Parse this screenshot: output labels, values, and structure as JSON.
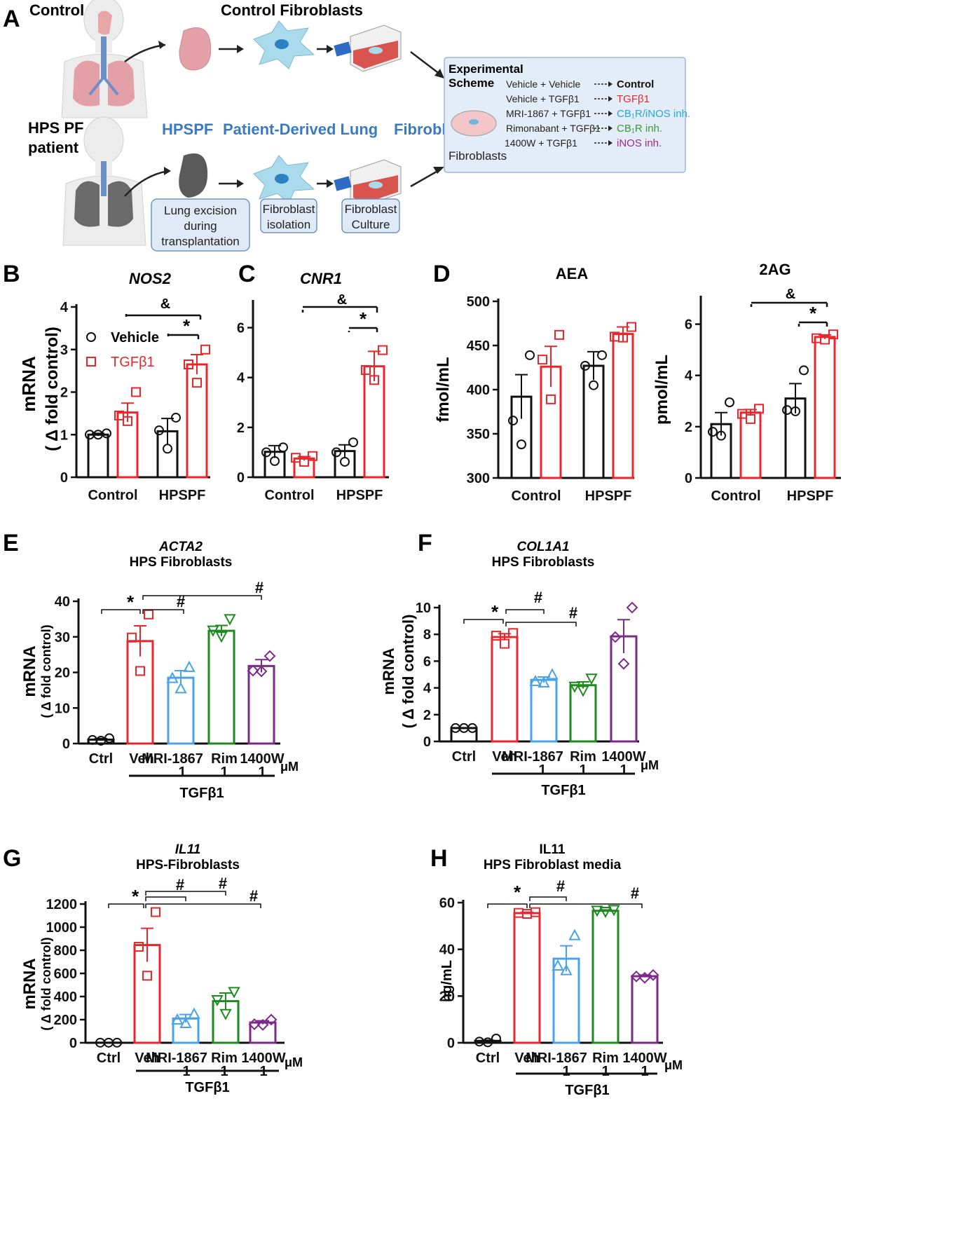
{
  "panelA": {
    "letter": "A",
    "control_label": "Control",
    "control_fibroblasts_title": "Control Fibroblasts",
    "hps_patient_label_1": "HPS PF",
    "hps_patient_label_2": "patient",
    "hpspf_title_1": "HPSPF",
    "hpspf_title_2": "Patient-Derived Lung",
    "hpspf_title_3": "Fibroblasts",
    "step1_lines": [
      "Lung excision",
      "during",
      "transplantation"
    ],
    "step2_lines": [
      "Fibroblast",
      "isolation"
    ],
    "step3_lines": [
      "Fibroblast",
      "Culture"
    ],
    "scheme_title_1": "Experimental",
    "scheme_title_2": "Scheme",
    "scheme_dish_label": "Fibroblasts",
    "scheme_rows": [
      {
        "treatment": "Vehicle + Vehicle",
        "group": "Control",
        "color": "#111111"
      },
      {
        "treatment": "Vehicle + TGFβ1",
        "group": "TGFβ1",
        "color": "#e8262b"
      },
      {
        "treatment": "MRI-1867 + TGFβ1",
        "group": "CB₁R/iNOS inh.",
        "color": "#27a7d8"
      },
      {
        "treatment": "Rimonabant + TGFβ1",
        "group": "CB₁R inh.",
        "color": "#3a9a35"
      },
      {
        "treatment": "1400W + TGFβ1",
        "group": "iNOS inh.",
        "color": "#a2278f"
      }
    ]
  },
  "colors": {
    "vehicle": "#111111",
    "tgf": "#e8262b",
    "mri": "#4aa3e8",
    "rim": "#1f8a1f",
    "w1400": "#7b2a8a"
  },
  "panels": {
    "B": {
      "letter": "B",
      "title": "NOS2",
      "ylabel_1": "mRNA",
      "ylabel_2": "( Δ fold control)",
      "legend_vehicle": "Vehicle",
      "legend_tgf": "TGFβ1",
      "sig_amp": "&",
      "sig_star": "*"
    },
    "C": {
      "letter": "C",
      "title": "CNR1",
      "sig_amp": "&",
      "sig_star": "*"
    },
    "D": {
      "letter": "D",
      "title_aea": "AEA",
      "title_2ag": "2AG",
      "ylabel_aea": "fmol/mL",
      "ylabel_2ag": "pmol/mL",
      "sig_amp": "&",
      "sig_star": "*"
    },
    "E": {
      "letter": "E",
      "title_1": "ACTA2",
      "title_2": "HPS Fibroblasts",
      "ylabel_1": "mRNA",
      "ylabel_2": "( Δ fold control)",
      "sig_star": "*",
      "sig_hash": "#",
      "treatment": "TGFβ1",
      "unit": "μM"
    },
    "F": {
      "letter": "F",
      "title_1": "COL1A1",
      "title_2": "HPS Fibroblasts",
      "ylabel_1": "mRNA",
      "ylabel_2": "( Δ fold control)",
      "sig_star": "*",
      "sig_hash": "#",
      "treatment": "TGFβ1",
      "unit": "μM"
    },
    "G": {
      "letter": "G",
      "title_1": "IL11",
      "title_2": "HPS-Fibroblasts",
      "ylabel_1": "mRNA",
      "ylabel_2": "( Δ fold control)",
      "sig_star": "*",
      "sig_hash": "#",
      "treatment": "TGFβ1",
      "unit": "μM"
    },
    "H": {
      "letter": "H",
      "title_1": "IL11",
      "title_2": "HPS Fibroblast media",
      "ylabel": "ng/mL",
      "sig_star": "*",
      "sig_hash": "#",
      "treatment": "TGFβ1",
      "unit": "μM"
    }
  },
  "chart_data": [
    {
      "id": "B",
      "type": "bar",
      "title": "NOS2",
      "ylabel": "mRNA ( Δ fold control)",
      "ylim": [
        0,
        4
      ],
      "yticks": [
        0,
        1,
        2,
        3,
        4
      ],
      "categories": [
        "Control",
        "HPSPF"
      ],
      "series": [
        {
          "name": "Vehicle",
          "values": [
            1.0,
            1.08
          ],
          "sem": [
            0.03,
            0.3
          ],
          "points": [
            [
              1.0,
              1.0,
              1.03
            ],
            [
              0.67,
              1.1,
              1.4
            ]
          ]
        },
        {
          "name": "TGFβ1",
          "values": [
            1.52,
            2.65
          ],
          "sem": [
            0.22,
            0.23
          ],
          "points": [
            [
              1.32,
              1.45,
              2.0
            ],
            [
              2.22,
              2.65,
              3.0
            ]
          ]
        }
      ]
    },
    {
      "id": "C",
      "type": "bar",
      "title": "CNR1",
      "ylim": [
        0,
        7
      ],
      "yticks": [
        0,
        2,
        4,
        6
      ],
      "categories": [
        "Control",
        "HPSPF"
      ],
      "series": [
        {
          "name": "Vehicle",
          "values": [
            1.02,
            1.05
          ],
          "sem": [
            0.25,
            0.25
          ],
          "points": [
            [
              0.65,
              1.0,
              1.2
            ],
            [
              0.62,
              1.0,
              1.4
            ]
          ]
        },
        {
          "name": "TGFβ1",
          "values": [
            0.75,
            4.45
          ],
          "sem": [
            0.08,
            0.6
          ],
          "points": [
            [
              0.62,
              0.78,
              0.85
            ],
            [
              3.9,
              4.3,
              5.1
            ]
          ]
        }
      ]
    },
    {
      "id": "D-AEA",
      "type": "bar",
      "title": "AEA",
      "ylabel": "fmol/mL",
      "ylim": [
        300,
        500
      ],
      "yticks": [
        300,
        350,
        400,
        450,
        500
      ],
      "categories": [
        "Control",
        "HPSPF"
      ],
      "series": [
        {
          "name": "Vehicle",
          "values": [
            392,
            427
          ],
          "sem": [
            25,
            16
          ],
          "points": [
            [
              338,
              365,
              439
            ],
            [
              405,
              427,
              439
            ]
          ]
        },
        {
          "name": "TGFβ1",
          "values": [
            426,
            463
          ],
          "sem": [
            23,
            8
          ],
          "points": [
            [
              389,
              434,
              462
            ],
            [
              459,
              460,
              471
            ]
          ]
        }
      ]
    },
    {
      "id": "D-2AG",
      "type": "bar",
      "title": "2AG",
      "ylabel": "pmol/mL",
      "ylim": [
        0,
        7
      ],
      "yticks": [
        0,
        2,
        4,
        6
      ],
      "categories": [
        "Control",
        "HPSPF"
      ],
      "series": [
        {
          "name": "Vehicle",
          "values": [
            2.1,
            3.1
          ],
          "sem": [
            0.45,
            0.58
          ],
          "points": [
            [
              1.65,
              1.8,
              2.95
            ],
            [
              2.6,
              2.65,
              4.2
            ]
          ]
        },
        {
          "name": "TGFβ1",
          "values": [
            2.55,
            5.5
          ],
          "sem": [
            0.12,
            0.08
          ],
          "points": [
            [
              2.3,
              2.5,
              2.7
            ],
            [
              5.4,
              5.45,
              5.6
            ]
          ]
        }
      ]
    },
    {
      "id": "E",
      "type": "bar",
      "title": "ACTA2 HPS Fibroblasts",
      "ylabel": "mRNA ( Δ fold control)",
      "ylim": [
        0,
        40
      ],
      "yticks": [
        0,
        10,
        20,
        30,
        40
      ],
      "categories": [
        "Ctrl",
        "Veh",
        "MRI-1867 1",
        "Rim 1",
        "1400W 1"
      ],
      "values": [
        1.1,
        28.8,
        18.5,
        31.7,
        21.8
      ],
      "sem": [
        0.3,
        4.3,
        2.0,
        1.5,
        1.8
      ],
      "points": [
        [
          0.8,
          1.0,
          1.5
        ],
        [
          20.4,
          29.8,
          36.3
        ],
        [
          15.5,
          18.4,
          21.5
        ],
        [
          30.1,
          31.8,
          35.0
        ],
        [
          20.3,
          20.5,
          24.6
        ]
      ],
      "markers": [
        "circle",
        "square",
        "triangle-up",
        "triangle-down",
        "diamond"
      ]
    },
    {
      "id": "F",
      "type": "bar",
      "title": "COL1A1 HPS Fibroblasts",
      "ylabel": "mRNA ( Δ fold control)",
      "ylim": [
        0,
        10
      ],
      "yticks": [
        0,
        2,
        4,
        6,
        8,
        10
      ],
      "categories": [
        "Ctrl",
        "Veh",
        "MRI-1867 1",
        "Rim 1",
        "1400W 1"
      ],
      "values": [
        1.0,
        7.8,
        4.6,
        4.2,
        7.85
      ],
      "sem": [
        0.02,
        0.25,
        0.22,
        0.25,
        1.25
      ],
      "points": [
        [
          1.0,
          1.0,
          1.0
        ],
        [
          7.3,
          7.9,
          8.1
        ],
        [
          4.4,
          4.5,
          5.0
        ],
        [
          3.8,
          4.1,
          4.7
        ],
        [
          5.8,
          7.8,
          10.0
        ]
      ],
      "markers": [
        "circle",
        "square",
        "triangle-up",
        "triangle-down",
        "diamond"
      ]
    },
    {
      "id": "G",
      "type": "bar",
      "title": "IL11 HPS-Fibroblasts",
      "ylabel": "mRNA ( Δ fold control)",
      "ylim": [
        0,
        1200
      ],
      "yticks": [
        0,
        200,
        400,
        600,
        800,
        1000,
        1200
      ],
      "categories": [
        "Ctrl",
        "Veh",
        "MRI-1867 1",
        "Rim 1",
        "1400W 1"
      ],
      "values": [
        1,
        845,
        210,
        360,
        175
      ],
      "sem": [
        0.5,
        145,
        35,
        70,
        15
      ],
      "points": [
        [
          1,
          1,
          1
        ],
        [
          580,
          830,
          1130
        ],
        [
          170,
          200,
          250
        ],
        [
          250,
          370,
          440
        ],
        [
          155,
          160,
          200
        ]
      ],
      "markers": [
        "circle",
        "square",
        "triangle-up",
        "triangle-down",
        "diamond"
      ]
    },
    {
      "id": "H",
      "type": "bar",
      "title": "IL11 HPS Fibroblast media",
      "ylabel": "ng/mL",
      "ylim": [
        0,
        60
      ],
      "yticks": [
        0,
        20,
        40,
        60
      ],
      "categories": [
        "Ctrl",
        "Veh",
        "MRI-1867 1",
        "Rim 1",
        "1400W 1"
      ],
      "values": [
        0.8,
        55.5,
        36.0,
        56.5,
        28.5
      ],
      "sem": [
        0.3,
        0.4,
        5.5,
        0.4,
        0.5
      ],
      "points": [
        [
          0.2,
          0.5,
          1.8
        ],
        [
          55.2,
          55.6,
          55.9
        ],
        [
          31.0,
          33.0,
          46.0
        ],
        [
          56.1,
          56.6,
          56.9
        ],
        [
          27.8,
          28.4,
          29.0
        ]
      ],
      "markers": [
        "circle",
        "square",
        "triangle-up",
        "triangle-down",
        "diamond"
      ]
    }
  ]
}
